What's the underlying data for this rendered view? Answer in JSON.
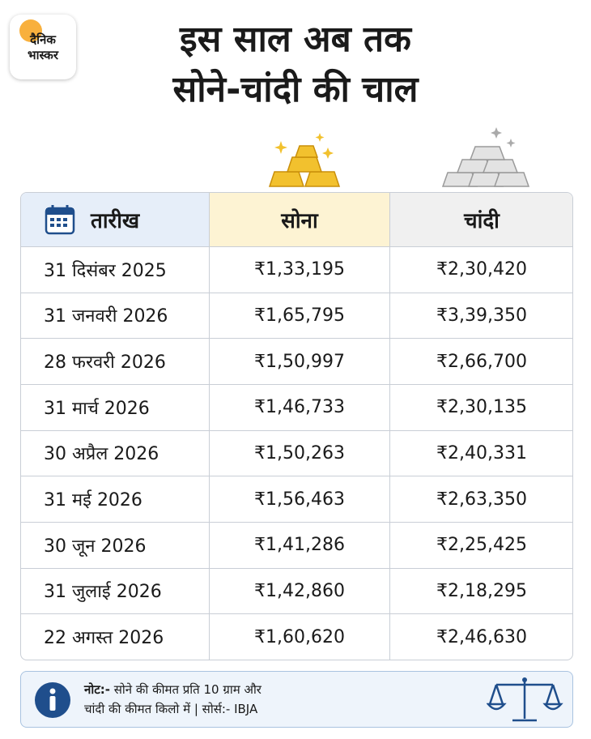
{
  "logo": {
    "line1": "दैनिक",
    "line2": "भास्कर"
  },
  "title": [
    "इस साल अब तक",
    "सोने-चांदी की चाल"
  ],
  "table": {
    "header": [
      "तारीख",
      "सोना",
      "चांदी"
    ],
    "rows": [
      [
        "31 दिसंबर 2025",
        "₹1,33,195",
        "₹2,30,420"
      ],
      [
        "31 जनवरी 2026",
        "₹1,65,795",
        "₹3,39,350"
      ],
      [
        "28 फरवरी 2026",
        "₹1,50,997",
        "₹2,66,700"
      ],
      [
        "31 मार्च 2026",
        "₹1,46,733",
        "₹2,30,135"
      ],
      [
        "30 अप्रैल 2026",
        "₹1,50,263",
        "₹2,40,331"
      ],
      [
        "31 मई 2026",
        "₹1,56,463",
        "₹2,63,350"
      ],
      [
        "30 जून 2026",
        "₹1,41,286",
        "₹2,25,425"
      ],
      [
        "31 जुलाई 2026",
        "₹1,42,860",
        "₹2,18,295"
      ],
      [
        "22 अगस्त 2026",
        "₹1,60,620",
        "₹2,46,630"
      ]
    ]
  },
  "note": {
    "label": "नोट:-",
    "line1": "सोने की कीमत प्रति 10 ग्राम और",
    "line2": "चांदी की कीमत किलो में | सोर्स:- IBJA"
  }
}
